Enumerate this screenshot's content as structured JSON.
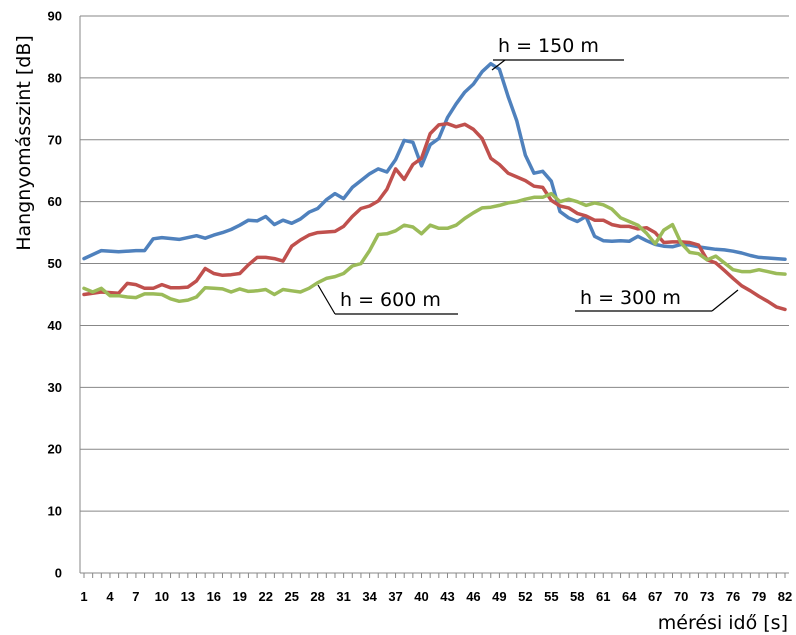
{
  "chart_data": {
    "type": "line",
    "xlabel": "mérési idő [s]",
    "ylabel": "Hangnyomásszint [dB]",
    "ylim": [
      0,
      90
    ],
    "yticks": [
      0,
      10,
      20,
      30,
      40,
      50,
      60,
      70,
      80,
      90
    ],
    "xlim": [
      1,
      82
    ],
    "xtick_labels": [
      "1",
      "4",
      "7",
      "10",
      "13",
      "16",
      "19",
      "22",
      "25",
      "28",
      "31",
      "34",
      "37",
      "40",
      "43",
      "46",
      "49",
      "52",
      "55",
      "58",
      "61",
      "64",
      "67",
      "70",
      "73",
      "76",
      "79",
      "82"
    ],
    "grid": "horizontal",
    "legend": "none",
    "series": [
      {
        "name": "h = 150 m",
        "color": "#4f81bd",
        "x": [
          1,
          3,
          5,
          7,
          8,
          9,
          10,
          12,
          14,
          15,
          16,
          17,
          18,
          19,
          20,
          21,
          22,
          23,
          24,
          25,
          26,
          27,
          28,
          29,
          30,
          31,
          32,
          33,
          34,
          35,
          36,
          37,
          38,
          39,
          40,
          41,
          42,
          43,
          44,
          45,
          46,
          47,
          48,
          49,
          50,
          51,
          52,
          53,
          54,
          55,
          56,
          57,
          58,
          59,
          60,
          61,
          62,
          63,
          64,
          65,
          66,
          67,
          68,
          69,
          70,
          71,
          72,
          73,
          74,
          75,
          76,
          77,
          78,
          79,
          80,
          81,
          82
        ],
        "y": [
          50.8,
          52.1,
          51.9,
          52.1,
          52.1,
          54.0,
          54.2,
          53.9,
          54.5,
          54.1,
          54.6,
          55.0,
          55.5,
          56.2,
          57.0,
          56.9,
          57.6,
          56.3,
          57.0,
          56.5,
          57.2,
          58.3,
          58.9,
          60.3,
          61.3,
          60.5,
          62.3,
          63.4,
          64.5,
          65.3,
          64.8,
          66.8,
          69.9,
          69.6,
          65.8,
          69.2,
          70.2,
          73.6,
          75.8,
          77.7,
          79.0,
          81.0,
          82.3,
          81.4,
          77.0,
          73.1,
          67.5,
          64.6,
          64.9,
          63.3,
          58.4,
          57.4,
          56.8,
          57.6,
          54.4,
          53.7,
          53.6,
          53.7,
          53.6,
          54.4,
          53.7,
          53.1,
          52.8,
          52.7,
          53.1,
          53.0,
          52.7,
          52.5,
          52.3,
          52.2,
          52.0,
          51.7,
          51.3,
          51.0,
          50.9,
          50.8,
          50.7
        ]
      },
      {
        "name": "",
        "color": "#c0504d",
        "x": [
          1,
          3,
          5,
          6,
          7,
          8,
          9,
          10,
          11,
          12,
          13,
          14,
          15,
          16,
          17,
          18,
          19,
          20,
          21,
          22,
          23,
          24,
          25,
          26,
          27,
          28,
          29,
          30,
          31,
          32,
          33,
          34,
          35,
          36,
          37,
          38,
          39,
          40,
          41,
          42,
          43,
          44,
          45,
          46,
          47,
          48,
          49,
          50,
          51,
          52,
          53,
          54,
          55,
          56,
          57,
          58,
          59,
          60,
          61,
          62,
          63,
          64,
          65,
          66,
          67,
          68,
          69,
          70,
          71,
          72,
          73,
          74,
          75,
          76,
          77,
          78,
          79,
          80,
          81,
          82
        ],
        "y": [
          45.0,
          45.4,
          45.2,
          46.8,
          46.6,
          46.0,
          46.0,
          46.6,
          46.1,
          46.1,
          46.2,
          47.2,
          49.2,
          48.4,
          48.1,
          48.2,
          48.4,
          49.8,
          51.0,
          51.0,
          50.8,
          50.4,
          52.8,
          53.8,
          54.6,
          55.0,
          55.1,
          55.2,
          56.0,
          57.6,
          58.9,
          59.3,
          60.1,
          62.0,
          65.3,
          63.6,
          66.0,
          67.0,
          71.0,
          72.4,
          72.6,
          72.1,
          72.5,
          71.7,
          70.2,
          67.0,
          66.0,
          64.6,
          64.0,
          63.4,
          62.5,
          62.3,
          60.2,
          59.3,
          59.0,
          58.1,
          57.7,
          57.0,
          57.0,
          56.3,
          56.0,
          56.0,
          55.6,
          55.8,
          55.0,
          53.4,
          53.5,
          53.5,
          53.4,
          53.0,
          50.6,
          50.1,
          48.9,
          47.6,
          46.4,
          45.6,
          44.7,
          43.9,
          43.0,
          42.6
        ]
      },
      {
        "name": "h = 600 m",
        "color": "#9bbb59",
        "x": [
          1,
          2,
          3,
          4,
          5,
          6,
          7,
          8,
          9,
          10,
          11,
          12,
          13,
          14,
          15,
          16,
          17,
          18,
          19,
          20,
          21,
          22,
          23,
          24,
          25,
          26,
          27,
          28,
          29,
          30,
          31,
          32,
          33,
          34,
          35,
          36,
          37,
          38,
          39,
          40,
          41,
          42,
          43,
          44,
          45,
          46,
          47,
          48,
          49,
          50,
          51,
          52,
          53,
          54,
          55,
          56,
          57,
          58,
          59,
          60,
          61,
          62,
          63,
          64,
          65,
          66,
          67,
          68,
          69,
          70,
          71,
          72,
          73,
          74,
          75,
          76,
          77,
          78,
          79,
          80,
          81,
          82
        ],
        "y": [
          46.0,
          45.4,
          46.0,
          44.8,
          44.8,
          44.6,
          44.5,
          45.1,
          45.1,
          45.0,
          44.3,
          43.9,
          44.1,
          44.6,
          46.1,
          46.0,
          45.9,
          45.4,
          45.9,
          45.5,
          45.6,
          45.8,
          45.0,
          45.8,
          45.6,
          45.4,
          46.0,
          46.9,
          47.6,
          47.9,
          48.4,
          49.6,
          50.0,
          52.1,
          54.7,
          54.8,
          55.3,
          56.2,
          55.9,
          54.8,
          56.2,
          55.7,
          55.7,
          56.2,
          57.3,
          58.2,
          59.0,
          59.1,
          59.4,
          59.8,
          60.0,
          60.4,
          60.7,
          60.7,
          61.3,
          60.0,
          60.4,
          60.0,
          59.4,
          59.8,
          59.5,
          58.8,
          57.4,
          56.8,
          56.2,
          54.9,
          53.2,
          55.4,
          56.3,
          53.3,
          51.8,
          51.6,
          50.6,
          51.2,
          50.1,
          49.0,
          48.7,
          48.7,
          49.0,
          48.7,
          48.4,
          48.3
        ]
      }
    ],
    "annotations": [
      {
        "text": "h = 150 m",
        "x": 48.5,
        "y": 82.5
      },
      {
        "text": "h = 600 m",
        "x": 29.5,
        "y": 46.8
      },
      {
        "text": "h = 300 m",
        "x": 77,
        "y": 50.1
      }
    ]
  }
}
